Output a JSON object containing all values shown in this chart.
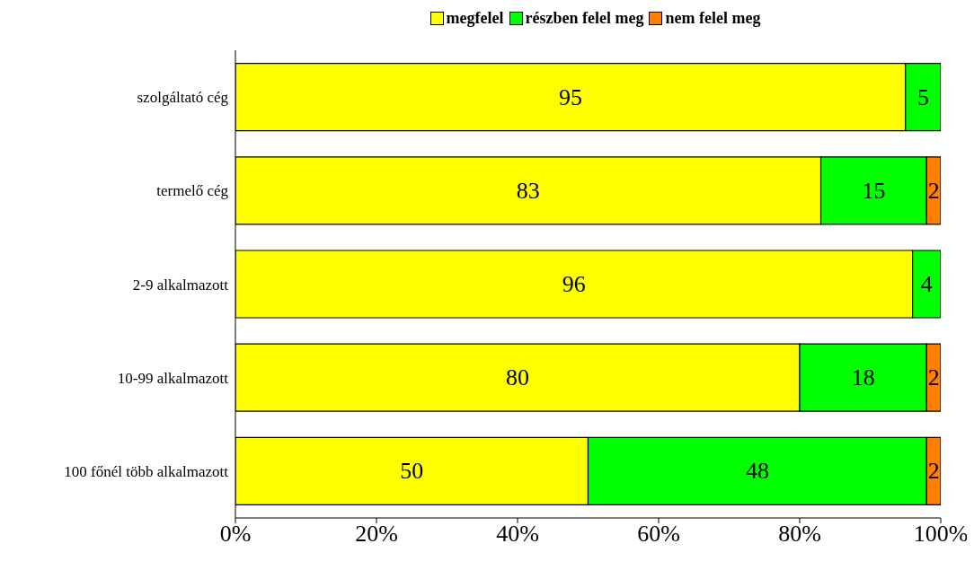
{
  "chart_data": {
    "type": "bar",
    "orientation": "horizontal",
    "stacked": true,
    "categories": [
      "szolgáltató cég",
      "termelő cég",
      "2-9 alkalmazott",
      "10-99 alkalmazott",
      "100 főnél több alkalmazott"
    ],
    "series": [
      {
        "name": "megfelel",
        "color": "#ffff00",
        "values": [
          95,
          83,
          96,
          80,
          50
        ],
        "value_labels": [
          "95",
          "83",
          "96",
          "80",
          "50"
        ]
      },
      {
        "name": "részben felel meg",
        "color": "#00ff00",
        "values": [
          5,
          15,
          4,
          18,
          48
        ],
        "value_labels": [
          "5",
          "15",
          "4",
          "18",
          "48"
        ]
      },
      {
        "name": "nem felel meg",
        "color": "#ff7f00",
        "values": [
          0,
          2,
          0,
          2,
          2
        ],
        "value_labels": [
          null,
          "2",
          null,
          "2",
          "2"
        ]
      }
    ],
    "xlim": [
      0,
      100
    ],
    "xticks": [
      {
        "value": 0,
        "label": "0%"
      },
      {
        "value": 20,
        "label": "20%"
      },
      {
        "value": 40,
        "label": "40%"
      },
      {
        "value": 60,
        "label": "60%"
      },
      {
        "value": 80,
        "label": "80%"
      },
      {
        "value": 100,
        "label": "100%"
      }
    ],
    "grid": false,
    "legend": "top"
  }
}
